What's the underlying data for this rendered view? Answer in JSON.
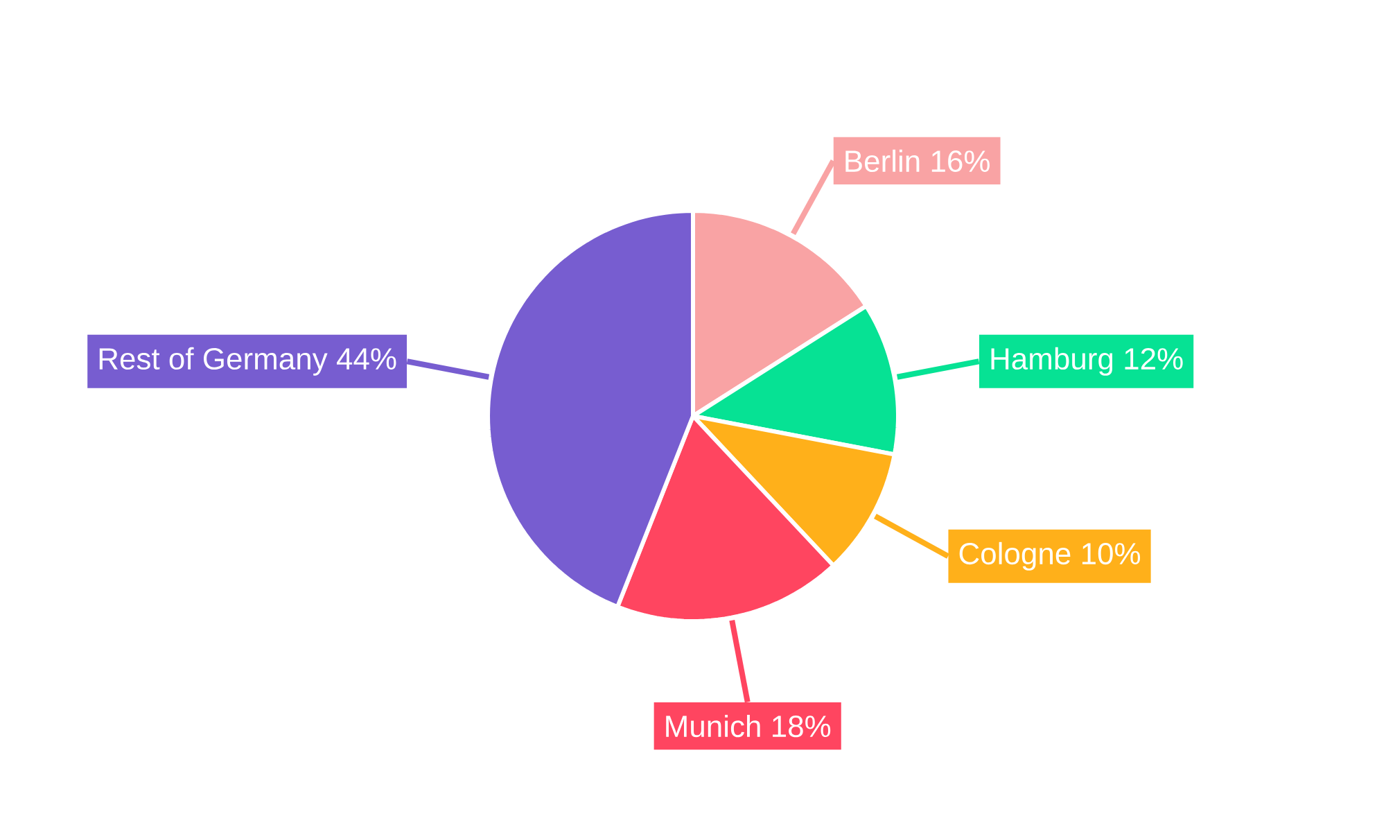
{
  "chart_data": {
    "type": "pie",
    "categories": [
      "Berlin",
      "Hamburg",
      "Cologne",
      "Munich",
      "Rest of Germany"
    ],
    "values": [
      16,
      12,
      10,
      18,
      44
    ],
    "value_labels": [
      "16%",
      "12%",
      "10%",
      "18%",
      "44%"
    ],
    "colors": [
      "#f9a3a4",
      "#06e294",
      "#ffb01a",
      "#ff4560",
      "#775dd0"
    ]
  }
}
